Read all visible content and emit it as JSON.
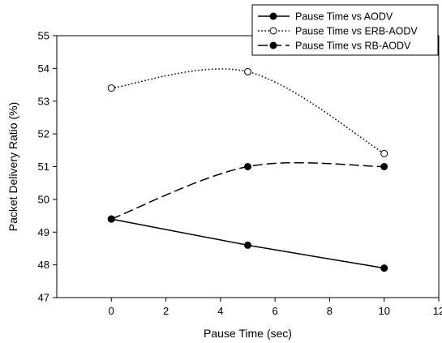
{
  "chart_data": {
    "type": "line",
    "xlabel": "Pause Time (sec)",
    "ylabel": "Packet Delivery Ratio (%)",
    "xlim": [
      -2,
      12
    ],
    "ylim": [
      47,
      55
    ],
    "xticks": [
      0,
      2,
      4,
      6,
      8,
      10,
      12
    ],
    "yticks": [
      47,
      48,
      49,
      50,
      51,
      52,
      53,
      54,
      55
    ],
    "legend_position": "top-right",
    "grid": false,
    "x": [
      0,
      5,
      10
    ],
    "series": [
      {
        "name": "Pause Time vs AODV",
        "values": [
          49.4,
          48.6,
          47.9
        ],
        "line_style": "solid",
        "marker": "filled-circle",
        "color": "#000000",
        "smooth": false
      },
      {
        "name": "Pause Time vs ERB-AODV",
        "values": [
          53.4,
          53.9,
          51.4
        ],
        "line_style": "dotted",
        "marker": "open-circle",
        "color": "#000000",
        "smooth": true
      },
      {
        "name": "Pause Time vs RB-AODV",
        "values": [
          49.4,
          51.0,
          51.0
        ],
        "line_style": "dashed",
        "marker": "filled-circle",
        "color": "#000000",
        "smooth": true
      }
    ]
  }
}
